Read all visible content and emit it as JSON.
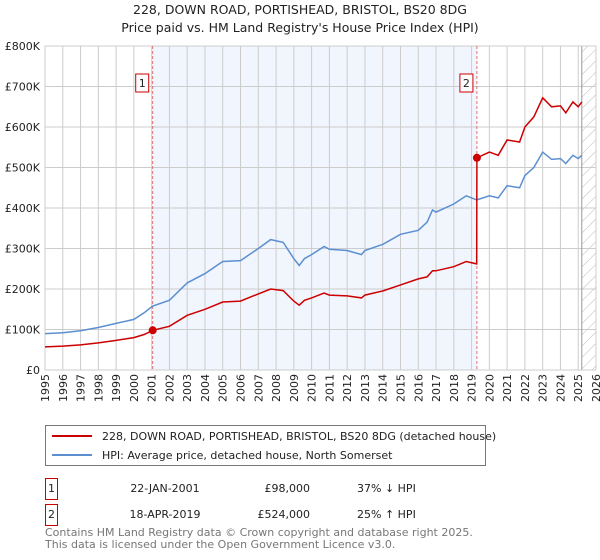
{
  "chart_data": {
    "type": "line",
    "title": "228, DOWN ROAD, PORTISHEAD, BRISTOL, BS20 8DG",
    "subtitle": "Price paid vs. HM Land Registry's House Price Index (HPI)",
    "xlim": [
      1995,
      2026
    ],
    "ylim": [
      0,
      800000
    ],
    "grid": true,
    "x_ticks": [
      "1995",
      "1996",
      "1997",
      "1998",
      "1999",
      "2000",
      "2001",
      "2002",
      "2003",
      "2004",
      "2005",
      "2006",
      "2007",
      "2008",
      "2009",
      "2010",
      "2011",
      "2012",
      "2013",
      "2014",
      "2015",
      "2016",
      "2017",
      "2018",
      "2019",
      "2020",
      "2021",
      "2022",
      "2023",
      "2024",
      "2025",
      "2026"
    ],
    "y_ticks": [
      {
        "value": 0,
        "label": "£0"
      },
      {
        "value": 100000,
        "label": "£100K"
      },
      {
        "value": 200000,
        "label": "£200K"
      },
      {
        "value": 300000,
        "label": "£300K"
      },
      {
        "value": 400000,
        "label": "£400K"
      },
      {
        "value": 500000,
        "label": "£500K"
      },
      {
        "value": 600000,
        "label": "£600K"
      },
      {
        "value": 700000,
        "label": "£700K"
      },
      {
        "value": 800000,
        "label": "£800K"
      }
    ],
    "shaded_period": [
      2001.06,
      2019.3
    ],
    "forecast_hatch_from": 2025.2,
    "series": [
      {
        "name": "228, DOWN ROAD, PORTISHEAD, BRISTOL, BS20 8DG (detached house)",
        "color": "#cc0000",
        "x": [
          1995,
          1996,
          1997,
          1998,
          1999,
          2000,
          2000.6,
          2001.06,
          2002,
          2003,
          2004,
          2005,
          2006,
          2007,
          2007.7,
          2008.4,
          2009,
          2009.3,
          2009.6,
          2010,
          2010.7,
          2011,
          2012,
          2012.8,
          2013,
          2014,
          2015,
          2016,
          2016.5,
          2016.8,
          2017,
          2018,
          2018.7,
          2019.29,
          2019.3,
          2020,
          2020.5,
          2021,
          2021.7,
          2022,
          2022.5,
          2023,
          2023.5,
          2024,
          2024.3,
          2024.7,
          2025,
          2025.2
        ],
        "y": [
          57000,
          59000,
          62000,
          67000,
          73000,
          80000,
          88000,
          98000,
          108000,
          135000,
          150000,
          168000,
          170000,
          188000,
          200000,
          196000,
          170000,
          160000,
          172000,
          178000,
          190000,
          185000,
          183000,
          178000,
          185000,
          195000,
          210000,
          225000,
          230000,
          245000,
          245000,
          255000,
          268000,
          262000,
          524000,
          538000,
          530000,
          568000,
          563000,
          600000,
          625000,
          672000,
          650000,
          652000,
          635000,
          662000,
          650000,
          662000
        ]
      },
      {
        "name": "HPI: Average price, detached house, North Somerset",
        "color": "#5b8fd0",
        "x": [
          1995,
          1996,
          1997,
          1998,
          1999,
          2000,
          2000.6,
          2001.06,
          2002,
          2003,
          2004,
          2005,
          2006,
          2007,
          2007.7,
          2008.4,
          2009,
          2009.3,
          2009.6,
          2010,
          2010.7,
          2011,
          2012,
          2012.8,
          2013,
          2014,
          2015,
          2016,
          2016.5,
          2016.8,
          2017,
          2018,
          2018.7,
          2019.29,
          2019.3,
          2020,
          2020.5,
          2021,
          2021.7,
          2022,
          2022.5,
          2023,
          2023.5,
          2024,
          2024.3,
          2024.7,
          2025,
          2025.2
        ],
        "y": [
          90000,
          92000,
          97000,
          105000,
          115000,
          125000,
          142000,
          158000,
          172000,
          215000,
          238000,
          268000,
          270000,
          300000,
          322000,
          315000,
          275000,
          258000,
          275000,
          285000,
          305000,
          298000,
          295000,
          285000,
          295000,
          310000,
          335000,
          345000,
          365000,
          395000,
          390000,
          410000,
          430000,
          420000,
          420000,
          430000,
          425000,
          455000,
          450000,
          480000,
          500000,
          538000,
          520000,
          522000,
          510000,
          530000,
          522000,
          530000
        ]
      }
    ],
    "annotations": [
      {
        "label": "1",
        "x": 2001.06,
        "y": 98000
      },
      {
        "label": "2",
        "x": 2019.3,
        "y": 524000
      }
    ]
  },
  "legend": {
    "property": "228, DOWN ROAD, PORTISHEAD, BRISTOL, BS20 8DG (detached house)",
    "hpi": "HPI: Average price, detached house, North Somerset"
  },
  "transactions": [
    {
      "num": "1",
      "date": "22-JAN-2001",
      "price": "£98,000",
      "hpi": "37% ↓ HPI"
    },
    {
      "num": "2",
      "date": "18-APR-2019",
      "price": "£524,000",
      "hpi": "25% ↑ HPI"
    }
  ],
  "footer": {
    "line1": "Contains HM Land Registry data © Crown copyright and database right 2025.",
    "line2": "This data is licensed under the Open Government Licence v3.0."
  }
}
